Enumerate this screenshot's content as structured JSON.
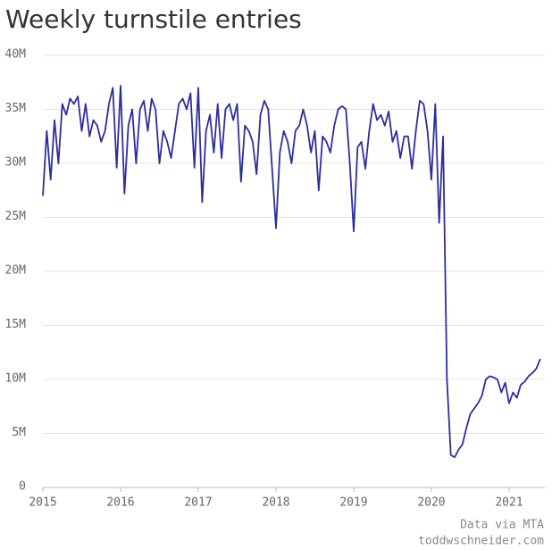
{
  "chart_data": {
    "type": "line",
    "title": "Weekly turnstile entries",
    "source": "Data via MTA",
    "site": "toddwschneider.com",
    "x": [
      2015.0,
      2015.05,
      2015.1,
      2015.15,
      2015.2,
      2015.25,
      2015.3,
      2015.35,
      2015.4,
      2015.45,
      2015.5,
      2015.55,
      2015.6,
      2015.65,
      2015.7,
      2015.75,
      2015.8,
      2015.85,
      2015.9,
      2015.95,
      2016.0,
      2016.05,
      2016.1,
      2016.15,
      2016.2,
      2016.25,
      2016.3,
      2016.35,
      2016.4,
      2016.45,
      2016.5,
      2016.55,
      2016.6,
      2016.65,
      2016.7,
      2016.75,
      2016.8,
      2016.85,
      2016.9,
      2016.95,
      2017.0,
      2017.05,
      2017.1,
      2017.15,
      2017.2,
      2017.25,
      2017.3,
      2017.35,
      2017.4,
      2017.45,
      2017.5,
      2017.55,
      2017.6,
      2017.65,
      2017.7,
      2017.75,
      2017.8,
      2017.85,
      2017.9,
      2017.95,
      2018.0,
      2018.05,
      2018.1,
      2018.15,
      2018.2,
      2018.25,
      2018.3,
      2018.35,
      2018.4,
      2018.45,
      2018.5,
      2018.55,
      2018.6,
      2018.65,
      2018.7,
      2018.75,
      2018.8,
      2018.85,
      2018.9,
      2018.95,
      2019.0,
      2019.05,
      2019.1,
      2019.15,
      2019.2,
      2019.25,
      2019.3,
      2019.35,
      2019.4,
      2019.45,
      2019.5,
      2019.55,
      2019.6,
      2019.65,
      2019.7,
      2019.75,
      2019.8,
      2019.85,
      2019.9,
      2019.95,
      2020.0,
      2020.05,
      2020.1,
      2020.15,
      2020.2,
      2020.25,
      2020.3,
      2020.35,
      2020.4,
      2020.45,
      2020.5,
      2020.55,
      2020.6,
      2020.65,
      2020.7,
      2020.75,
      2020.8,
      2020.85,
      2020.9,
      2020.95,
      2021.0,
      2021.05,
      2021.1,
      2021.15,
      2021.2,
      2021.25,
      2021.3,
      2021.35,
      2021.4
    ],
    "series": [
      {
        "name": "Weekly turnstile entries",
        "color": "#2b2e9e",
        "values": [
          27,
          33,
          28.5,
          34,
          30,
          35.5,
          34.5,
          36,
          35.5,
          36.2,
          33,
          35.5,
          32.5,
          34,
          33.5,
          32,
          33,
          35.5,
          37,
          29.6,
          37.2,
          27.2,
          33.5,
          35,
          30,
          35,
          35.8,
          33,
          36,
          35,
          30,
          33,
          32,
          30.5,
          33,
          35.5,
          36,
          35,
          36.5,
          29.6,
          37,
          26.4,
          33,
          34.5,
          31,
          35.5,
          30.5,
          35,
          35.5,
          34,
          35.5,
          28.3,
          33.5,
          33,
          32,
          29,
          34.5,
          35.8,
          35,
          29.5,
          24,
          31,
          33,
          32,
          30,
          33,
          33.5,
          35,
          33.5,
          31,
          33,
          27.5,
          32.5,
          32,
          31,
          33.5,
          35,
          35.3,
          35,
          30,
          23.7,
          31.5,
          32,
          29.5,
          33,
          35.5,
          34,
          34.5,
          33.5,
          34.8,
          32,
          33,
          30.5,
          32.5,
          32.5,
          29.5,
          33,
          35.8,
          35.5,
          33,
          28.5,
          35.5,
          24.5,
          32.5,
          10,
          3,
          2.8,
          3.5,
          4,
          5.5,
          6.8,
          7.3,
          7.8,
          8.5,
          10,
          10.3,
          10.2,
          10,
          8.8,
          9.7,
          7.8,
          8.8,
          8.3,
          9.5,
          9.8,
          10.3,
          10.6,
          11,
          11.9
        ]
      }
    ],
    "xlim": [
      2015,
      2021.46
    ],
    "xticks": [
      2015,
      2016,
      2017,
      2018,
      2019,
      2020,
      2021
    ],
    "ylim": [
      0,
      40
    ],
    "yticks": [
      0,
      {
        "value": 5,
        "label": "5M"
      },
      {
        "value": 10,
        "label": "10M"
      },
      {
        "value": 15,
        "label": "15M"
      },
      {
        "value": 20,
        "label": "20M"
      },
      {
        "value": 25,
        "label": "25M"
      },
      {
        "value": 30,
        "label": "30M"
      },
      {
        "value": 35,
        "label": "35M"
      },
      {
        "value": 40,
        "label": "40M"
      }
    ],
    "grid": true
  }
}
